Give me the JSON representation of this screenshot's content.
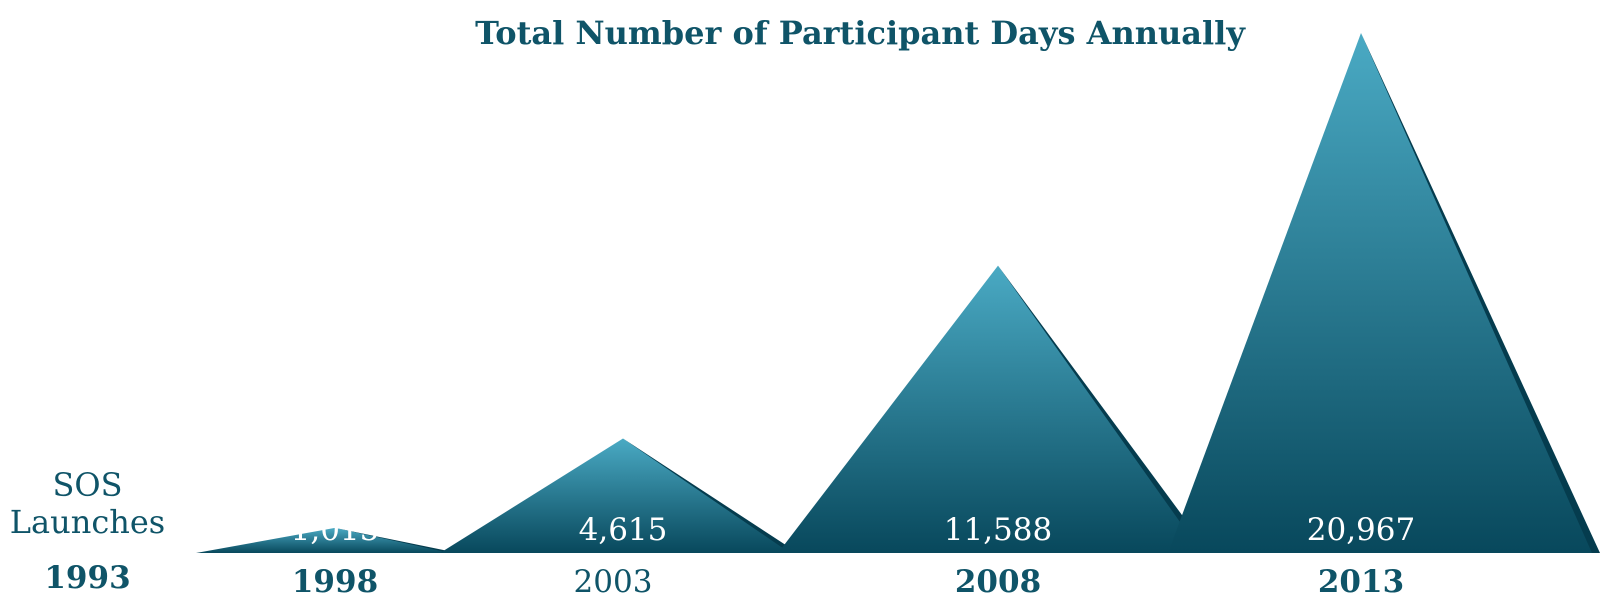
{
  "chart_data": {
    "type": "area",
    "title": "Total Number of Participant Days Annually",
    "categories": [
      "1998",
      "2003",
      "2008",
      "2013"
    ],
    "values": [
      1015,
      4615,
      11588,
      20967
    ],
    "value_labels": [
      "1,015",
      "4,615",
      "11,588",
      "20,967"
    ],
    "bold_categories": [
      "1998",
      "2008",
      "2013"
    ],
    "launch": {
      "label_line1": "SOS",
      "label_line2": "Launches",
      "year": "1993"
    },
    "xlabel": "",
    "ylabel": "",
    "grid": false,
    "colors": {
      "peak_top": "#4aaac4",
      "peak_bottom": "#08485c",
      "shadow": "#053c4e",
      "text": "#0f5468",
      "value_text": "#ffffff"
    }
  }
}
